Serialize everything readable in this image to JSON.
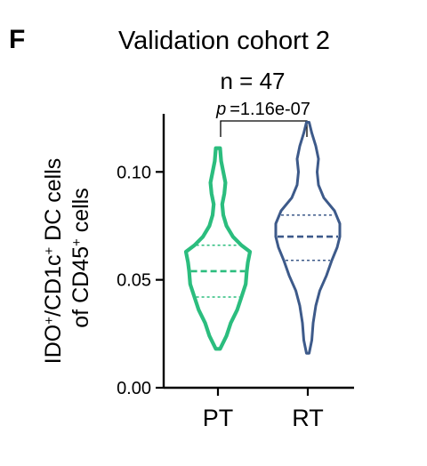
{
  "chart_data": {
    "type": "violin",
    "panel_label": "F",
    "title": "Validation cohort 2",
    "subtitle": "n = 47",
    "annotation": {
      "p_label": "p",
      "p_value": "=1.16e-07"
    },
    "ylabel_lines": [
      [
        "IDO",
        "+",
        "/CD1c",
        "+",
        " DC cells"
      ],
      [
        "of CD45",
        "+",
        " cells"
      ]
    ],
    "ylim": [
      0.0,
      0.1269
    ],
    "yticks": [
      0.0,
      0.05,
      0.1
    ],
    "ytick_labels": [
      "0.00",
      "0.05",
      "0.10"
    ],
    "categories": [
      "PT",
      "RT"
    ],
    "series": [
      {
        "color": "#2bbd7e",
        "min": 0.018,
        "max": 0.111,
        "quartiles": [
          0.042,
          0.054,
          0.066
        ],
        "density": [
          [
            0.018,
            2
          ],
          [
            0.024,
            8
          ],
          [
            0.03,
            12
          ],
          [
            0.036,
            18
          ],
          [
            0.042,
            22
          ],
          [
            0.048,
            26
          ],
          [
            0.054,
            27
          ],
          [
            0.058,
            28
          ],
          [
            0.063,
            30
          ],
          [
            0.066,
            22
          ],
          [
            0.07,
            14
          ],
          [
            0.075,
            8
          ],
          [
            0.08,
            5
          ],
          [
            0.085,
            4
          ],
          [
            0.09,
            6
          ],
          [
            0.095,
            7
          ],
          [
            0.1,
            5
          ],
          [
            0.105,
            3
          ],
          [
            0.111,
            2
          ]
        ]
      },
      {
        "color": "#3d5a8a",
        "min": 0.016,
        "max": 0.123,
        "quartiles": [
          0.059,
          0.07,
          0.08
        ],
        "density": [
          [
            0.016,
            1
          ],
          [
            0.022,
            3
          ],
          [
            0.03,
            4
          ],
          [
            0.038,
            6
          ],
          [
            0.045,
            9
          ],
          [
            0.052,
            14
          ],
          [
            0.059,
            18
          ],
          [
            0.065,
            22
          ],
          [
            0.07,
            24
          ],
          [
            0.076,
            24
          ],
          [
            0.082,
            20
          ],
          [
            0.088,
            12
          ],
          [
            0.094,
            8
          ],
          [
            0.1,
            7
          ],
          [
            0.106,
            8
          ],
          [
            0.112,
            6
          ],
          [
            0.118,
            3
          ],
          [
            0.123,
            1
          ]
        ]
      }
    ]
  }
}
